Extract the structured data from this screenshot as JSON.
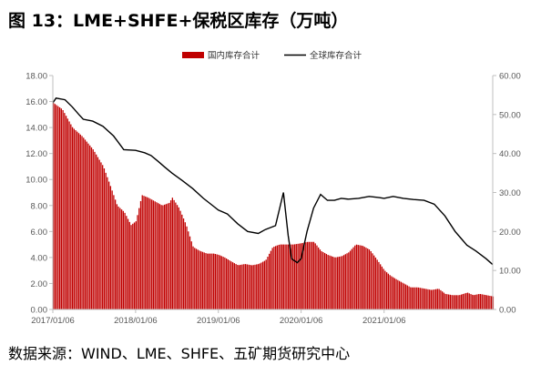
{
  "title": "图 13：LME+SHFE+保税区库存（万吨）",
  "source": "数据来源：WIND、LME、SHFE、五矿期货研究中心",
  "colors": {
    "bar": "#c00000",
    "line": "#000000",
    "axis": "#bfbfbf",
    "text": "#595959"
  },
  "chart_data": {
    "type": "bar",
    "legend": {
      "placement": "top-right",
      "items": [
        "国内库存合计",
        "全球库存合计"
      ]
    },
    "grid": false,
    "x_ticks": [
      "2017/01/06",
      "2018/01/06",
      "2019/01/06",
      "2020/01/06",
      "2021/01/06"
    ],
    "x_range": [
      "2017/01/06",
      "2022/04/30"
    ],
    "y_left": {
      "ticks": [
        "0.00",
        "2.00",
        "4.00",
        "6.00",
        "8.00",
        "10.00",
        "12.00",
        "14.00",
        "16.00",
        "18.00"
      ],
      "range": [
        0,
        18
      ]
    },
    "y_right": {
      "ticks": [
        "0.00",
        "10.00",
        "20.00",
        "30.00",
        "40.00",
        "50.00",
        "60.00"
      ],
      "range": [
        0,
        60
      ]
    },
    "series": [
      {
        "name": "国内库存合计",
        "kind": "bar",
        "axis": "left",
        "points": [
          [
            "2017/01/06",
            15.9
          ],
          [
            "2017/02/15",
            15.4
          ],
          [
            "2017/04/01",
            14.0
          ],
          [
            "2017/05/15",
            13.3
          ],
          [
            "2017/07/01",
            12.3
          ],
          [
            "2017/08/15",
            11.0
          ],
          [
            "2017/09/15",
            9.5
          ],
          [
            "2017/10/15",
            8.0
          ],
          [
            "2017/11/15",
            7.5
          ],
          [
            "2017/12/15",
            6.5
          ],
          [
            "2018/01/06",
            6.8
          ],
          [
            "2018/02/01",
            8.8
          ],
          [
            "2018/03/01",
            8.6
          ],
          [
            "2018/04/01",
            8.3
          ],
          [
            "2018/05/01",
            8.0
          ],
          [
            "2018/06/01",
            8.2
          ],
          [
            "2018/06/15",
            8.6
          ],
          [
            "2018/07/15",
            7.8
          ],
          [
            "2018/08/15",
            6.5
          ],
          [
            "2018/09/15",
            4.8
          ],
          [
            "2018/10/15",
            4.5
          ],
          [
            "2018/11/15",
            4.3
          ],
          [
            "2018/12/15",
            4.3
          ],
          [
            "2019/01/06",
            4.2
          ],
          [
            "2019/02/01",
            4.0
          ],
          [
            "2019/03/01",
            3.7
          ],
          [
            "2019/04/01",
            3.4
          ],
          [
            "2019/05/01",
            3.5
          ],
          [
            "2019/06/01",
            3.4
          ],
          [
            "2019/07/01",
            3.5
          ],
          [
            "2019/08/01",
            3.8
          ],
          [
            "2019/09/01",
            4.8
          ],
          [
            "2019/10/01",
            5.0
          ],
          [
            "2019/11/01",
            5.0
          ],
          [
            "2019/12/01",
            5.0
          ],
          [
            "2020/01/06",
            5.1
          ],
          [
            "2020/02/01",
            5.2
          ],
          [
            "2020/03/01",
            5.2
          ],
          [
            "2020/04/01",
            4.5
          ],
          [
            "2020/05/01",
            4.2
          ],
          [
            "2020/06/01",
            4.0
          ],
          [
            "2020/07/01",
            4.1
          ],
          [
            "2020/08/01",
            4.4
          ],
          [
            "2020/09/01",
            5.0
          ],
          [
            "2020/10/01",
            4.9
          ],
          [
            "2020/11/01",
            4.6
          ],
          [
            "2020/12/01",
            3.9
          ],
          [
            "2021/01/06",
            3.0
          ],
          [
            "2021/02/01",
            2.6
          ],
          [
            "2021/03/01",
            2.3
          ],
          [
            "2021/04/01",
            2.0
          ],
          [
            "2021/05/01",
            1.7
          ],
          [
            "2021/06/01",
            1.7
          ],
          [
            "2021/07/01",
            1.6
          ],
          [
            "2021/08/01",
            1.5
          ],
          [
            "2021/09/01",
            1.6
          ],
          [
            "2021/10/01",
            1.2
          ],
          [
            "2021/11/01",
            1.1
          ],
          [
            "2021/12/01",
            1.1
          ],
          [
            "2022/01/06",
            1.3
          ],
          [
            "2022/02/01",
            1.1
          ],
          [
            "2022/03/01",
            1.2
          ],
          [
            "2022/04/30",
            1.0
          ]
        ]
      },
      {
        "name": "全球库存合计",
        "kind": "line",
        "axis": "right",
        "points": [
          [
            "2017/01/06",
            53.0
          ],
          [
            "2017/01/20",
            54.2
          ],
          [
            "2017/03/01",
            53.8
          ],
          [
            "2017/04/01",
            52.0
          ],
          [
            "2017/05/01",
            50.0
          ],
          [
            "2017/05/20",
            48.8
          ],
          [
            "2017/07/01",
            48.3
          ],
          [
            "2017/08/15",
            47.0
          ],
          [
            "2017/10/01",
            44.5
          ],
          [
            "2017/11/15",
            41.0
          ],
          [
            "2018/01/06",
            40.8
          ],
          [
            "2018/02/15",
            40.2
          ],
          [
            "2018/03/15",
            39.5
          ],
          [
            "2018/04/15",
            38.0
          ],
          [
            "2018/05/15",
            36.5
          ],
          [
            "2018/06/15",
            35.0
          ],
          [
            "2018/08/01",
            33.0
          ],
          [
            "2018/09/15",
            31.0
          ],
          [
            "2018/11/01",
            28.5
          ],
          [
            "2018/12/15",
            26.5
          ],
          [
            "2019/01/06",
            25.5
          ],
          [
            "2019/02/15",
            24.5
          ],
          [
            "2019/04/01",
            22.0
          ],
          [
            "2019/05/15",
            20.0
          ],
          [
            "2019/07/01",
            19.5
          ],
          [
            "2019/08/01",
            20.5
          ],
          [
            "2019/09/15",
            21.5
          ],
          [
            "2019/10/20",
            30.0
          ],
          [
            "2019/11/10",
            19.0
          ],
          [
            "2019/11/25",
            13.0
          ],
          [
            "2019/12/20",
            12.0
          ],
          [
            "2020/01/06",
            13.0
          ],
          [
            "2020/02/01",
            20.0
          ],
          [
            "2020/03/01",
            26.0
          ],
          [
            "2020/04/01",
            29.5
          ],
          [
            "2020/05/01",
            28.0
          ],
          [
            "2020/06/01",
            28.0
          ],
          [
            "2020/07/01",
            28.5
          ],
          [
            "2020/08/01",
            28.3
          ],
          [
            "2020/09/15",
            28.5
          ],
          [
            "2020/11/01",
            29.0
          ],
          [
            "2020/12/15",
            28.7
          ],
          [
            "2021/01/06",
            28.5
          ],
          [
            "2021/02/15",
            29.0
          ],
          [
            "2021/04/01",
            28.5
          ],
          [
            "2021/05/15",
            28.2
          ],
          [
            "2021/07/01",
            28.0
          ],
          [
            "2021/08/15",
            27.0
          ],
          [
            "2021/10/01",
            24.0
          ],
          [
            "2021/11/15",
            20.0
          ],
          [
            "2022/01/06",
            16.5
          ],
          [
            "2022/02/15",
            15.0
          ],
          [
            "2022/04/01",
            13.0
          ],
          [
            "2022/04/30",
            11.5
          ]
        ]
      }
    ]
  }
}
